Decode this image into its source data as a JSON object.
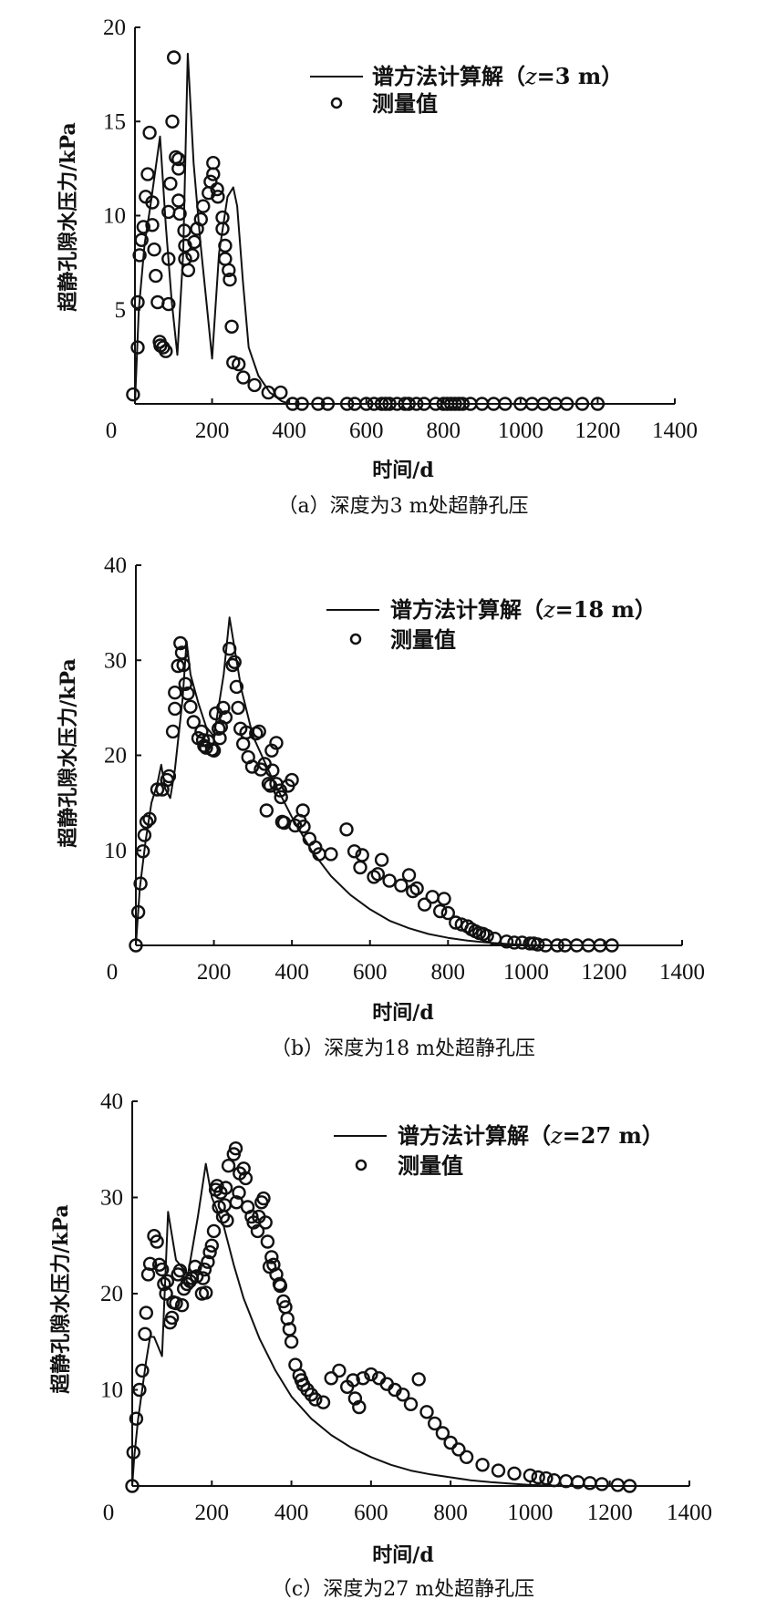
{
  "chart_data": [
    {
      "type": "scatter",
      "panel": "a",
      "caption": "（a）深度为3 m处超静孔压",
      "xlabel": "时间/d",
      "ylabel": "超静孔隙水压力/kPa",
      "xlim": [
        0,
        1400
      ],
      "ylim": [
        0,
        20
      ],
      "xticks": [
        "0",
        "200",
        "400",
        "600",
        "800",
        "1000",
        "1200",
        "1400"
      ],
      "yticks": [
        "5",
        "10",
        "15",
        "20"
      ],
      "legend": {
        "position": "top-right",
        "line_label": "谱方法计算解（",
        "line_z": "z",
        "line_suffix": "=3 m）",
        "marker_label": "测量值"
      },
      "series": [
        {
          "name": "谱方法计算解",
          "kind": "line",
          "x": [
            0,
            10,
            25,
            40,
            65,
            80,
            95,
            110,
            125,
            137,
            152,
            170,
            185,
            200,
            218,
            240,
            255,
            265,
            280,
            295,
            320,
            350,
            380,
            400,
            1300
          ],
          "y": [
            0,
            5,
            8.5,
            10.5,
            14.2,
            9.5,
            5.5,
            2.6,
            8,
            18.6,
            12.8,
            8.5,
            5.5,
            2.4,
            8,
            11,
            11.5,
            10.5,
            6.5,
            3,
            1.5,
            0.6,
            0.15,
            0,
            0
          ]
        },
        {
          "name": "测量值",
          "kind": "scatter",
          "x": [
            -5,
            7,
            7,
            12,
            17,
            22,
            28,
            33,
            38,
            45,
            45,
            50,
            54,
            59,
            64,
            66,
            73,
            80,
            87,
            87,
            87,
            92,
            97,
            101,
            106,
            113,
            113,
            113,
            116,
            128,
            130,
            130,
            138,
            149,
            154,
            161,
            171,
            177,
            191,
            196,
            203,
            203,
            213,
            215,
            227,
            227,
            234,
            234,
            243,
            246,
            251,
            255,
            269,
            281,
            310,
            346,
            378,
            409,
            433,
            475,
            500,
            550,
            570,
            600,
            620,
            640,
            650,
            660,
            680,
            700,
            710,
            730,
            750,
            780,
            800,
            810,
            820,
            830,
            840,
            850,
            870,
            900,
            930,
            960,
            1000,
            1030,
            1060,
            1090,
            1120,
            1160,
            1200
          ],
          "y": [
            0.5,
            3,
            5.4,
            7.9,
            8.7,
            9.4,
            11,
            12.2,
            14.4,
            10.7,
            9.5,
            8.2,
            6.8,
            5.4,
            3.3,
            3.1,
            3.0,
            2.8,
            5.3,
            7.7,
            10.2,
            11.7,
            15.0,
            18.4,
            13.1,
            13.0,
            12.5,
            10.8,
            10.1,
            9.2,
            8.4,
            7.7,
            7.1,
            7.9,
            8.6,
            9.3,
            9.8,
            10.5,
            11.2,
            11.8,
            12.8,
            12.2,
            11.4,
            11.0,
            9.9,
            9.3,
            8.4,
            7.7,
            7.1,
            6.6,
            4.1,
            2.2,
            2.1,
            1.4,
            1.0,
            0.6,
            0.6,
            0,
            0,
            0,
            0,
            0,
            0,
            0,
            0,
            0,
            0,
            0,
            0,
            0,
            0,
            0,
            0,
            0,
            0,
            0,
            0,
            0,
            0,
            0,
            0,
            0,
            0,
            0,
            0,
            0,
            0,
            0,
            0,
            0,
            0
          ]
        }
      ]
    },
    {
      "type": "scatter",
      "panel": "b",
      "caption": "（b）深度为18 m处超静孔压",
      "xlabel": "时间/d",
      "ylabel": "超静孔隙水压力/kPa",
      "xlim": [
        0,
        1400
      ],
      "ylim": [
        0,
        40
      ],
      "xticks": [
        "0",
        "200",
        "400",
        "600",
        "800",
        "1000",
        "1200",
        "1400"
      ],
      "yticks": [
        "10",
        "20",
        "30",
        "40"
      ],
      "legend": {
        "position": "top-right",
        "line_label": "谱方法计算解（",
        "line_z": "z",
        "line_suffix": "=18 m）",
        "marker_label": "测量值"
      },
      "series": [
        {
          "name": "谱方法计算解",
          "kind": "line",
          "x": [
            0,
            10,
            25,
            40,
            55,
            65,
            75,
            88,
            100,
            120,
            130,
            140,
            160,
            180,
            200,
            225,
            240,
            270,
            300,
            350,
            400,
            450,
            500,
            550,
            600,
            650,
            700,
            750,
            800,
            850,
            900,
            950,
            1000,
            1050,
            1300
          ],
          "y": [
            0,
            6,
            11,
            15,
            17,
            19,
            16.5,
            15.5,
            18.5,
            26,
            32,
            28.5,
            25.5,
            23,
            22,
            28.5,
            34.5,
            27,
            22,
            17.5,
            13.5,
            10,
            7.3,
            5.3,
            3.8,
            2.6,
            1.8,
            1.2,
            0.8,
            0.5,
            0.3,
            0.15,
            0.05,
            0,
            0
          ]
        },
        {
          "name": "测量值",
          "kind": "scatter",
          "x": [
            0,
            6,
            12,
            18,
            22,
            27,
            35,
            55,
            68,
            80,
            85,
            95,
            100,
            100,
            108,
            114,
            118,
            122,
            127,
            133,
            140,
            148,
            160,
            168,
            172,
            175,
            180,
            185,
            195,
            200,
            205,
            212,
            215,
            218,
            224,
            230,
            240,
            248,
            253,
            258,
            262,
            268,
            275,
            283,
            288,
            298,
            308,
            316,
            320,
            330,
            335,
            340,
            345,
            348,
            350,
            360,
            360,
            370,
            372,
            375,
            380,
            390,
            400,
            408,
            420,
            428,
            430,
            445,
            460,
            470,
            500,
            540,
            560,
            575,
            580,
            610,
            620,
            630,
            650,
            680,
            700,
            710,
            720,
            740,
            760,
            780,
            790,
            800,
            820,
            835,
            850,
            860,
            870,
            880,
            890,
            900,
            920,
            950,
            970,
            990,
            1010,
            1020,
            1030,
            1050,
            1080,
            1100,
            1130,
            1160,
            1190,
            1220
          ],
          "y": [
            0,
            3.5,
            6.5,
            9.9,
            11.6,
            13,
            13.3,
            16.4,
            16.4,
            17.4,
            17.8,
            22.5,
            24.9,
            26.6,
            29.4,
            31.8,
            30.8,
            29.5,
            27.5,
            26.5,
            25.1,
            23.5,
            21.8,
            22.5,
            21.6,
            21,
            20.8,
            21.5,
            20.6,
            20.5,
            24.4,
            22.8,
            21.8,
            23,
            25,
            24,
            31.2,
            29.5,
            29.8,
            27.2,
            25,
            22.8,
            21.2,
            22.4,
            19.8,
            18.8,
            22.3,
            22.5,
            18.5,
            19.1,
            14.2,
            17,
            16.8,
            20.5,
            18.4,
            21.3,
            17,
            16.3,
            15.6,
            13,
            12.9,
            16.8,
            17.4,
            12.6,
            13.1,
            14.2,
            12.5,
            11.2,
            10.3,
            9.6,
            9.6,
            12.2,
            9.9,
            8.2,
            9.5,
            7.2,
            7.5,
            9,
            6.8,
            6.3,
            7.4,
            5.7,
            6,
            4.3,
            5.1,
            3.6,
            4.9,
            3.4,
            2.4,
            2.2,
            2,
            1.7,
            1.5,
            1.3,
            1.2,
            1.0,
            0.7,
            0.4,
            0.3,
            0.3,
            0.2,
            0.2,
            0.1,
            0,
            0,
            0,
            0,
            0,
            0,
            0
          ]
        }
      ]
    },
    {
      "type": "scatter",
      "panel": "c",
      "caption": "（c）深度为27 m处超静孔压",
      "xlabel": "时间/d",
      "ylabel": "超静孔隙水压力/kPa",
      "xlim": [
        0,
        1400
      ],
      "ylim": [
        0,
        40
      ],
      "xticks": [
        "0",
        "200",
        "400",
        "600",
        "800",
        "1000",
        "1200",
        "1400"
      ],
      "yticks": [
        "10",
        "20",
        "30",
        "40"
      ],
      "legend": {
        "position": "top-right",
        "line_label": "谱方法计算解（",
        "line_z": "z",
        "line_suffix": "=27 m）",
        "marker_label": "测量值"
      },
      "series": [
        {
          "name": "谱方法计算解",
          "kind": "line",
          "x": [
            0,
            5,
            15,
            25,
            35,
            45,
            55,
            75,
            90,
            110,
            140,
            165,
            185,
            200,
            230,
            255,
            280,
            320,
            360,
            400,
            450,
            500,
            550,
            600,
            650,
            700,
            750,
            800,
            850,
            900,
            950,
            1000,
            1050,
            1100,
            1300
          ],
          "y": [
            0,
            3,
            7,
            10,
            13,
            15.5,
            15.5,
            13.5,
            28.5,
            23.5,
            22,
            28,
            33.5,
            30,
            27,
            23,
            19.5,
            15.3,
            12,
            9.3,
            7,
            5.3,
            4,
            3,
            2.2,
            1.6,
            1.2,
            0.9,
            0.6,
            0.4,
            0.25,
            0.1,
            0.05,
            0,
            0
          ]
        },
        {
          "name": "测量值",
          "kind": "scatter",
          "x": [
            0,
            3,
            10,
            18,
            25,
            32,
            35,
            40,
            45,
            55,
            62,
            68,
            75,
            80,
            85,
            88,
            95,
            100,
            103,
            110,
            115,
            120,
            125,
            130,
            138,
            145,
            150,
            158,
            162,
            175,
            178,
            182,
            185,
            190,
            195,
            200,
            205,
            210,
            213,
            218,
            222,
            228,
            232,
            235,
            238,
            242,
            255,
            260,
            262,
            268,
            270,
            280,
            285,
            290,
            300,
            305,
            315,
            318,
            325,
            330,
            335,
            340,
            345,
            350,
            355,
            362,
            370,
            372,
            380,
            385,
            390,
            395,
            400,
            410,
            420,
            425,
            430,
            440,
            450,
            460,
            480,
            500,
            520,
            540,
            555,
            560,
            570,
            580,
            600,
            620,
            640,
            660,
            680,
            700,
            720,
            740,
            760,
            780,
            800,
            820,
            840,
            880,
            920,
            960,
            1000,
            1020,
            1040,
            1060,
            1090,
            1120,
            1150,
            1180,
            1220,
            1250
          ],
          "y": [
            0,
            3.5,
            7.0,
            10,
            12,
            15.8,
            18,
            22,
            23.1,
            26,
            25.4,
            23,
            22.5,
            21,
            20,
            21.3,
            17,
            17.5,
            19.1,
            19,
            22,
            22.4,
            18.8,
            20.5,
            21,
            21.3,
            21.6,
            22.8,
            21.8,
            20,
            21.6,
            22.5,
            20.1,
            23.3,
            24.3,
            25,
            26.5,
            30.8,
            31.2,
            29,
            30.5,
            28,
            29.2,
            31,
            27.6,
            33.3,
            34.5,
            35.1,
            29.5,
            30.5,
            32.5,
            33,
            32,
            29,
            28,
            27.4,
            26.5,
            28,
            29.5,
            29.9,
            27.4,
            25.4,
            22.8,
            23.8,
            23,
            22,
            21,
            20.8,
            19.2,
            18.6,
            17.4,
            16.3,
            15,
            12.6,
            11.5,
            11,
            10.5,
            10,
            9.5,
            9.0,
            8.7,
            11.2,
            12,
            10.3,
            11,
            9.1,
            8.2,
            11.2,
            11.6,
            11.2,
            10.6,
            10,
            9.5,
            8.5,
            11.1,
            7.7,
            6.5,
            5.5,
            4.5,
            3.8,
            3,
            2.2,
            1.6,
            1.3,
            1.1,
            0.9,
            0.8,
            0.6,
            0.5,
            0.4,
            0.3,
            0.2,
            0.1,
            0
          ]
        }
      ]
    }
  ]
}
